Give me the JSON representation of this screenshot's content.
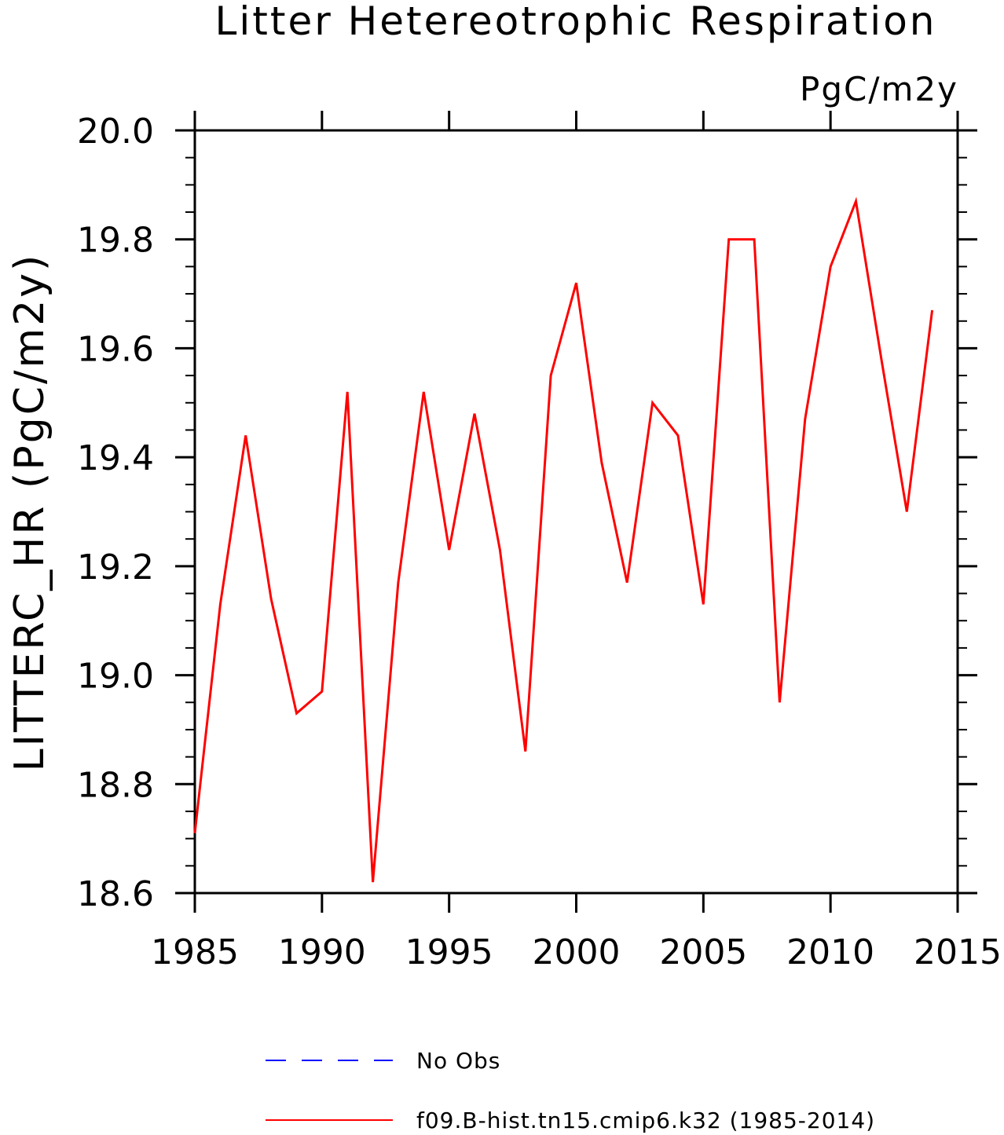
{
  "chart_data": {
    "type": "line",
    "title": "Litter Hetereotrophic Respiration",
    "units": "PgC/m2y",
    "ylabel": "LITTERC_HR   (PgC/m2y)",
    "xlabel": "",
    "xlim": [
      1985,
      2015
    ],
    "ylim": [
      18.6,
      20.0
    ],
    "x_ticks": [
      1985,
      1990,
      1995,
      2000,
      2005,
      2010,
      2015
    ],
    "x_tick_labels": [
      "1985",
      "1990",
      "1995",
      "2000",
      "2005",
      "2010",
      "2015"
    ],
    "y_ticks": [
      18.6,
      18.8,
      19.0,
      19.2,
      19.4,
      19.6,
      19.8,
      20.0
    ],
    "y_tick_labels": [
      "18.6",
      "18.8",
      "19.0",
      "19.2",
      "19.4",
      "19.6",
      "19.8",
      "20.0"
    ],
    "grid": false,
    "legend_position": "bottom",
    "series": [
      {
        "name": "f09.B-hist.tn15.cmip6.k32 (1985-2014)",
        "color": "#ff0000",
        "dash": "solid",
        "x": [
          1985,
          1986,
          1987,
          1988,
          1989,
          1990,
          1991,
          1992,
          1993,
          1994,
          1995,
          1996,
          1997,
          1998,
          1999,
          2000,
          2001,
          2002,
          2003,
          2004,
          2005,
          2006,
          2007,
          2008,
          2009,
          2010,
          2011,
          2012,
          2013,
          2014
        ],
        "values": [
          18.71,
          19.13,
          19.44,
          19.14,
          18.93,
          18.97,
          19.52,
          18.62,
          19.17,
          19.52,
          19.23,
          19.48,
          19.23,
          18.86,
          19.55,
          19.72,
          19.39,
          19.17,
          19.5,
          19.44,
          19.13,
          19.8,
          19.8,
          18.95,
          19.47,
          19.75,
          19.87,
          19.58,
          19.3,
          19.67
        ]
      }
    ],
    "legend": [
      {
        "label": "No Obs",
        "color": "#0000ff",
        "dash": "dashed"
      },
      {
        "label": "f09.B-hist.tn15.cmip6.k32 (1985-2014)",
        "color": "#ff0000",
        "dash": "solid"
      }
    ]
  }
}
